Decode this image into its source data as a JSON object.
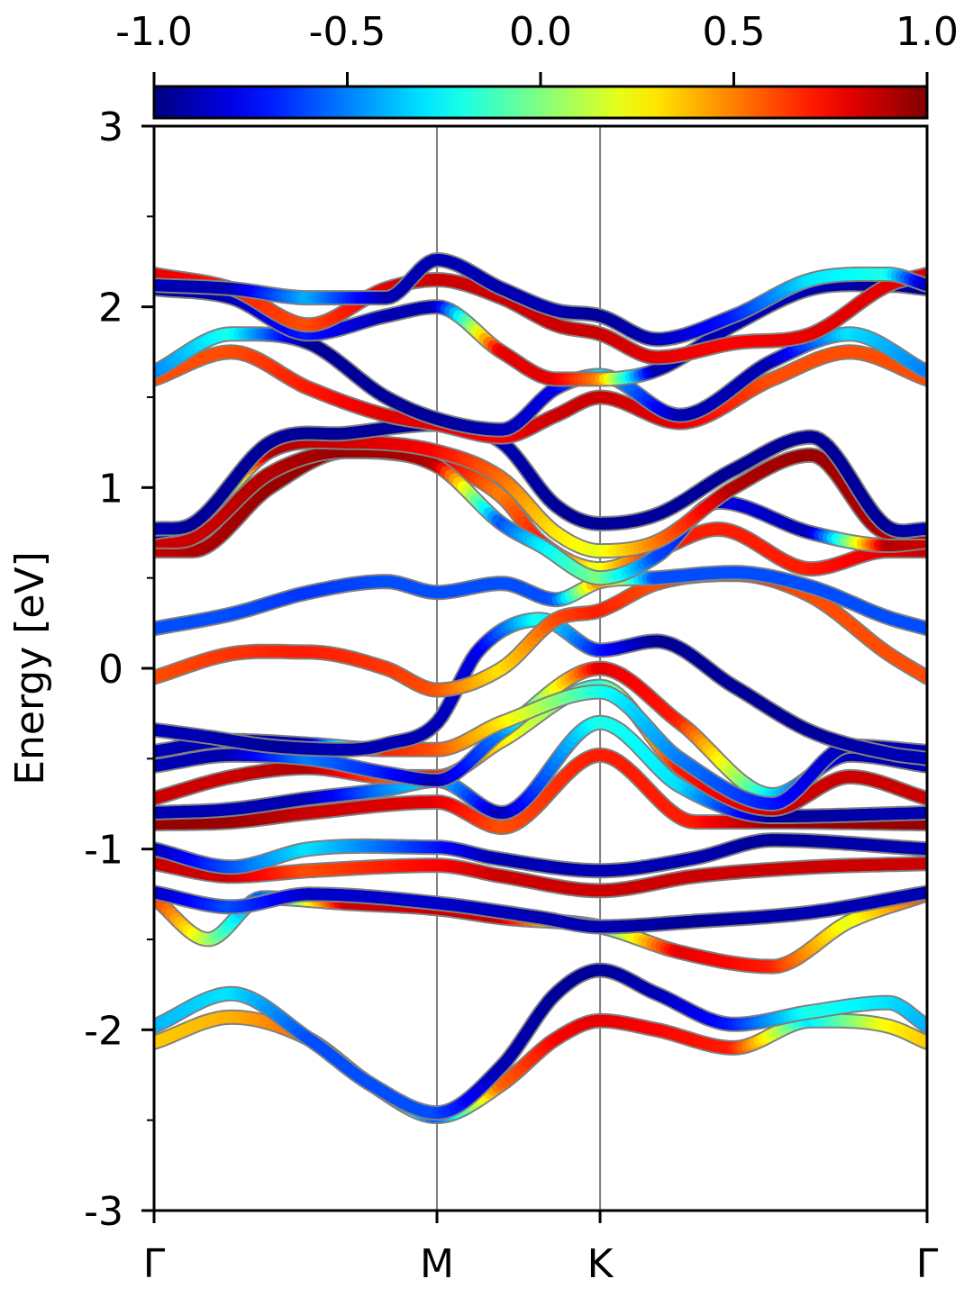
{
  "chart_data": {
    "type": "line",
    "title": "",
    "xlabel": "",
    "ylabel": "Energy [eV]",
    "ylim": [
      -3,
      3
    ],
    "xlim": [
      0,
      1
    ],
    "grid": false,
    "y_ticks": [
      {
        "value": 3,
        "label": "3"
      },
      {
        "value": 2,
        "label": "2"
      },
      {
        "value": 1,
        "label": "1"
      },
      {
        "value": 0,
        "label": "0"
      },
      {
        "value": -1,
        "label": "-1"
      },
      {
        "value": -2,
        "label": "-2"
      },
      {
        "value": -3,
        "label": "-3"
      }
    ],
    "y_minor_ticks": [
      2.5,
      1.5,
      0.5,
      -0.5,
      -1.5,
      -2.5
    ],
    "k_points": [
      {
        "label": "Γ",
        "x": 0.0
      },
      {
        "label": "M",
        "x": 0.366
      },
      {
        "label": "K",
        "x": 0.577
      },
      {
        "label": "Γ",
        "x": 1.0
      }
    ],
    "colorbar": {
      "colormap": "jet",
      "range": [
        -1.0,
        1.0
      ],
      "ticks": [
        {
          "value": -1.0,
          "label": "-1.0"
        },
        {
          "value": -0.5,
          "label": "-0.5"
        },
        {
          "value": 0.0,
          "label": "0.0"
        },
        {
          "value": 0.5,
          "label": "0.5"
        },
        {
          "value": 1.0,
          "label": "1.0"
        }
      ]
    },
    "bands": [
      {
        "x": [
          0,
          0.1,
          0.2,
          0.28,
          0.366,
          0.45,
          0.52,
          0.577,
          0.65,
          0.75,
          0.85,
          0.95,
          1
        ],
        "y": [
          -2.07,
          -1.93,
          -2.05,
          -2.3,
          -2.48,
          -2.3,
          -2.05,
          -1.95,
          -2.0,
          -2.1,
          -1.95,
          -1.98,
          -2.07
        ],
        "c": [
          0.35,
          0.4,
          0.55,
          0.4,
          -0.6,
          0.55,
          0.75,
          0.8,
          0.75,
          0.7,
          -0.3,
          0.25,
          0.35
        ]
      },
      {
        "x": [
          0,
          0.1,
          0.2,
          0.28,
          0.366,
          0.45,
          0.52,
          0.577,
          0.65,
          0.75,
          0.85,
          0.95,
          1
        ],
        "y": [
          -1.98,
          -1.8,
          -2.05,
          -2.3,
          -2.46,
          -2.2,
          -1.8,
          -1.67,
          -1.8,
          -1.97,
          -1.9,
          -1.85,
          -1.98
        ],
        "c": [
          -0.4,
          -0.3,
          -0.6,
          -0.6,
          -0.6,
          -0.9,
          -0.95,
          -0.95,
          -0.9,
          -0.7,
          -0.2,
          -0.3,
          -0.4
        ]
      },
      {
        "x": [
          0,
          0.07,
          0.14,
          0.25,
          0.366,
          0.45,
          0.577,
          0.68,
          0.8,
          0.9,
          1
        ],
        "y": [
          -1.27,
          -1.5,
          -1.27,
          -1.3,
          -1.33,
          -1.38,
          -1.43,
          -1.57,
          -1.65,
          -1.4,
          -1.25
        ],
        "c": [
          0.7,
          0.1,
          -0.6,
          0.85,
          0.85,
          0.85,
          -0.2,
          0.8,
          0.7,
          0.2,
          0.6
        ]
      },
      {
        "x": [
          0,
          0.1,
          0.2,
          0.366,
          0.5,
          0.577,
          0.7,
          0.85,
          1
        ],
        "y": [
          -1.24,
          -1.32,
          -1.25,
          -1.3,
          -1.38,
          -1.43,
          -1.4,
          -1.35,
          -1.24
        ],
        "c": [
          -0.9,
          -0.6,
          -0.85,
          -0.85,
          -0.9,
          -0.9,
          -0.95,
          -0.9,
          -0.9
        ]
      },
      {
        "x": [
          0,
          0.1,
          0.2,
          0.366,
          0.45,
          0.577,
          0.7,
          0.85,
          1
        ],
        "y": [
          -1.08,
          -1.15,
          -1.12,
          -1.09,
          -1.15,
          -1.23,
          -1.15,
          -1.1,
          -1.08
        ],
        "c": [
          0.85,
          0.85,
          0.6,
          0.75,
          0.85,
          0.85,
          0.85,
          0.85,
          0.85
        ]
      },
      {
        "x": [
          0,
          0.1,
          0.2,
          0.366,
          0.44,
          0.577,
          0.7,
          0.8,
          1
        ],
        "y": [
          -1.0,
          -1.1,
          -1.0,
          -0.99,
          -1.05,
          -1.12,
          -1.05,
          -0.95,
          -1.0
        ],
        "c": [
          -0.9,
          -0.6,
          -0.3,
          -0.7,
          -0.9,
          -0.9,
          -0.9,
          -0.95,
          -0.9
        ]
      },
      {
        "x": [
          0,
          0.1,
          0.2,
          0.366,
          0.45,
          0.577,
          0.7,
          0.8,
          1
        ],
        "y": [
          -0.86,
          -0.85,
          -0.8,
          -0.74,
          -0.88,
          -0.48,
          -0.85,
          -0.85,
          -0.86
        ],
        "c": [
          0.95,
          0.95,
          0.85,
          0.8,
          0.6,
          0.7,
          0.7,
          0.95,
          0.95
        ]
      },
      {
        "x": [
          0,
          0.1,
          0.2,
          0.3,
          0.366,
          0.45,
          0.577,
          0.68,
          0.8,
          1
        ],
        "y": [
          -0.8,
          -0.78,
          -0.72,
          -0.67,
          -0.62,
          -0.8,
          -0.3,
          -0.65,
          -0.82,
          -0.8
        ],
        "c": [
          -0.9,
          -0.9,
          -0.9,
          -0.5,
          -0.3,
          -0.9,
          -0.2,
          -0.3,
          -0.95,
          -0.9
        ]
      },
      {
        "x": [
          0,
          0.1,
          0.2,
          0.3,
          0.366,
          0.45,
          0.577,
          0.68,
          0.8,
          0.9,
          1
        ],
        "y": [
          -0.72,
          -0.6,
          -0.55,
          -0.6,
          -0.6,
          -0.4,
          -0.1,
          -0.55,
          -0.78,
          -0.6,
          -0.72
        ],
        "c": [
          0.85,
          0.85,
          0.9,
          0.6,
          0.7,
          0.3,
          -0.2,
          0.7,
          0.85,
          0.85,
          0.85
        ]
      },
      {
        "x": [
          0,
          0.1,
          0.2,
          0.3,
          0.366,
          0.45,
          0.577,
          0.68,
          0.8,
          0.9,
          1
        ],
        "y": [
          -0.54,
          -0.48,
          -0.5,
          -0.58,
          -0.62,
          -0.35,
          0.0,
          -0.3,
          -0.7,
          -0.48,
          -0.54
        ],
        "c": [
          -0.9,
          -0.9,
          -0.5,
          -0.7,
          -0.9,
          -0.5,
          0.8,
          0.7,
          -0.3,
          -0.9,
          -0.9
        ]
      },
      {
        "x": [
          0,
          0.1,
          0.2,
          0.3,
          0.366,
          0.45,
          0.577,
          0.68,
          0.8,
          0.9,
          1
        ],
        "y": [
          -0.46,
          -0.4,
          -0.42,
          -0.45,
          -0.45,
          -0.3,
          -0.13,
          -0.5,
          -0.75,
          -0.43,
          -0.46
        ],
        "c": [
          -0.9,
          -0.9,
          -0.9,
          0.7,
          0.6,
          0.3,
          -0.2,
          -0.5,
          -0.7,
          -0.9,
          -0.9
        ]
      },
      {
        "x": [
          0,
          0.07,
          0.15,
          0.25,
          0.3,
          0.366,
          0.42,
          0.5,
          0.577,
          0.65,
          0.75,
          0.85,
          0.95,
          1
        ],
        "y": [
          -0.34,
          -0.38,
          -0.43,
          -0.45,
          -0.42,
          -0.3,
          0.1,
          0.27,
          0.1,
          0.15,
          -0.1,
          -0.35,
          -0.47,
          -0.5
        ],
        "c": [
          -0.9,
          -0.9,
          -0.95,
          -0.9,
          -0.9,
          -0.9,
          -0.8,
          -0.2,
          -0.7,
          -0.95,
          -0.95,
          -0.95,
          -0.9,
          -0.9
        ]
      },
      {
        "x": [
          0,
          0.1,
          0.2,
          0.3,
          0.366,
          0.45,
          0.52,
          0.577,
          0.65,
          0.75,
          0.85,
          0.95,
          1
        ],
        "y": [
          -0.05,
          0.08,
          0.09,
          0.0,
          -0.12,
          0.0,
          0.27,
          0.32,
          0.47,
          0.52,
          0.4,
          0.08,
          -0.05
        ],
        "c": [
          0.6,
          0.65,
          0.7,
          0.65,
          0.6,
          0.3,
          0.6,
          0.7,
          0.6,
          0.7,
          0.6,
          0.6,
          0.6
        ]
      },
      {
        "x": [
          0,
          0.1,
          0.2,
          0.3,
          0.366,
          0.45,
          0.52,
          0.577,
          0.65,
          0.75,
          0.85,
          0.95,
          1
        ],
        "y": [
          0.22,
          0.3,
          0.42,
          0.48,
          0.42,
          0.47,
          0.38,
          0.48,
          0.5,
          0.53,
          0.45,
          0.28,
          0.22
        ],
        "c": [
          -0.6,
          -0.6,
          -0.65,
          -0.6,
          -0.6,
          -0.6,
          -0.6,
          0.5,
          -0.6,
          -0.6,
          -0.6,
          -0.6,
          -0.6
        ]
      },
      {
        "x": [
          0,
          0.05,
          0.15,
          0.25,
          0.366,
          0.45,
          0.5,
          0.577,
          0.65,
          0.73,
          0.85,
          0.95,
          1
        ],
        "y": [
          0.65,
          0.65,
          1.0,
          1.2,
          1.14,
          0.95,
          0.7,
          0.55,
          0.65,
          0.77,
          0.55,
          0.65,
          0.65
        ],
        "c": [
          0.85,
          0.9,
          0.95,
          0.95,
          0.85,
          0.5,
          0.7,
          0.2,
          0.7,
          0.7,
          0.7,
          0.8,
          0.85
        ]
      },
      {
        "x": [
          0,
          0.05,
          0.15,
          0.25,
          0.366,
          0.45,
          0.5,
          0.577,
          0.65,
          0.73,
          0.85,
          0.95,
          1
        ],
        "y": [
          0.7,
          0.72,
          1.08,
          1.2,
          1.12,
          0.8,
          0.68,
          0.5,
          0.62,
          0.92,
          0.75,
          0.68,
          0.7
        ],
        "c": [
          0.85,
          0.85,
          0.9,
          0.95,
          0.9,
          -0.6,
          -0.3,
          0.0,
          -0.6,
          -0.8,
          -0.9,
          0.9,
          0.85
        ]
      },
      {
        "x": [
          0,
          0.05,
          0.15,
          0.25,
          0.366,
          0.45,
          0.52,
          0.577,
          0.65,
          0.75,
          0.85,
          0.95,
          1
        ],
        "y": [
          0.75,
          0.8,
          1.2,
          1.25,
          1.2,
          1.05,
          0.75,
          0.65,
          0.7,
          1.0,
          1.18,
          0.75,
          0.75
        ],
        "c": [
          -0.9,
          -0.9,
          0.9,
          0.85,
          0.75,
          0.55,
          0.3,
          0.2,
          0.5,
          0.9,
          0.95,
          0.9,
          0.9
        ]
      },
      {
        "x": [
          0,
          0.05,
          0.15,
          0.25,
          0.366,
          0.45,
          0.52,
          0.577,
          0.65,
          0.75,
          0.85,
          0.95,
          1
        ],
        "y": [
          0.77,
          0.8,
          1.25,
          1.3,
          1.35,
          1.25,
          0.9,
          0.8,
          0.85,
          1.1,
          1.28,
          0.78,
          0.77
        ],
        "c": [
          -0.9,
          -0.95,
          -0.95,
          -0.95,
          -0.95,
          -0.9,
          -0.95,
          -0.95,
          -0.95,
          -0.95,
          -0.95,
          -0.95,
          -0.9
        ]
      },
      {
        "x": [
          0,
          0.1,
          0.2,
          0.3,
          0.366,
          0.45,
          0.52,
          0.577,
          0.68,
          0.8,
          0.9,
          1
        ],
        "y": [
          1.6,
          1.75,
          1.55,
          1.4,
          1.35,
          1.28,
          1.4,
          1.5,
          1.36,
          1.6,
          1.75,
          1.6
        ],
        "c": [
          0.6,
          0.6,
          0.7,
          0.8,
          0.8,
          0.75,
          0.85,
          0.85,
          0.8,
          0.6,
          0.6,
          0.6
        ]
      },
      {
        "x": [
          0,
          0.1,
          0.2,
          0.3,
          0.366,
          0.45,
          0.52,
          0.577,
          0.68,
          0.8,
          0.9,
          1
        ],
        "y": [
          1.64,
          1.85,
          1.8,
          1.5,
          1.38,
          1.32,
          1.55,
          1.62,
          1.4,
          1.7,
          1.85,
          1.64
        ],
        "c": [
          -0.5,
          -0.2,
          -0.95,
          -0.95,
          -0.95,
          -0.9,
          -0.8,
          -0.3,
          -0.9,
          -0.9,
          -0.3,
          -0.5
        ]
      },
      {
        "x": [
          0,
          0.1,
          0.2,
          0.3,
          0.366,
          0.45,
          0.52,
          0.577,
          0.65,
          0.75,
          0.85,
          0.95,
          1
        ],
        "y": [
          2.1,
          2.05,
          1.85,
          1.95,
          2.0,
          1.75,
          1.6,
          1.6,
          1.65,
          1.9,
          2.1,
          2.12,
          2.1
        ],
        "c": [
          -0.95,
          -0.9,
          -0.7,
          -0.9,
          -0.9,
          0.8,
          0.8,
          0.5,
          -0.9,
          -0.9,
          -0.9,
          -0.95,
          -0.95
        ]
      },
      {
        "x": [
          0,
          0.1,
          0.2,
          0.3,
          0.366,
          0.45,
          0.52,
          0.577,
          0.65,
          0.75,
          0.85,
          0.95,
          1
        ],
        "y": [
          2.18,
          2.1,
          1.9,
          2.1,
          2.15,
          2.05,
          1.9,
          1.85,
          1.72,
          1.8,
          1.85,
          2.12,
          2.18
        ],
        "c": [
          0.8,
          0.7,
          0.6,
          0.8,
          0.85,
          0.85,
          0.85,
          0.85,
          0.8,
          0.75,
          0.8,
          0.8,
          0.8
        ]
      },
      {
        "x": [
          0,
          0.1,
          0.2,
          0.3,
          0.366,
          0.45,
          0.52,
          0.577,
          0.65,
          0.75,
          0.85,
          0.95,
          1
        ],
        "y": [
          2.12,
          2.1,
          2.05,
          2.05,
          2.26,
          2.1,
          1.98,
          1.95,
          1.82,
          1.95,
          2.15,
          2.18,
          2.12
        ],
        "c": [
          -0.9,
          -0.9,
          -0.4,
          -0.9,
          -0.9,
          -0.9,
          -0.9,
          -0.95,
          -0.9,
          -0.7,
          -0.3,
          -0.2,
          -0.9
        ]
      }
    ]
  }
}
